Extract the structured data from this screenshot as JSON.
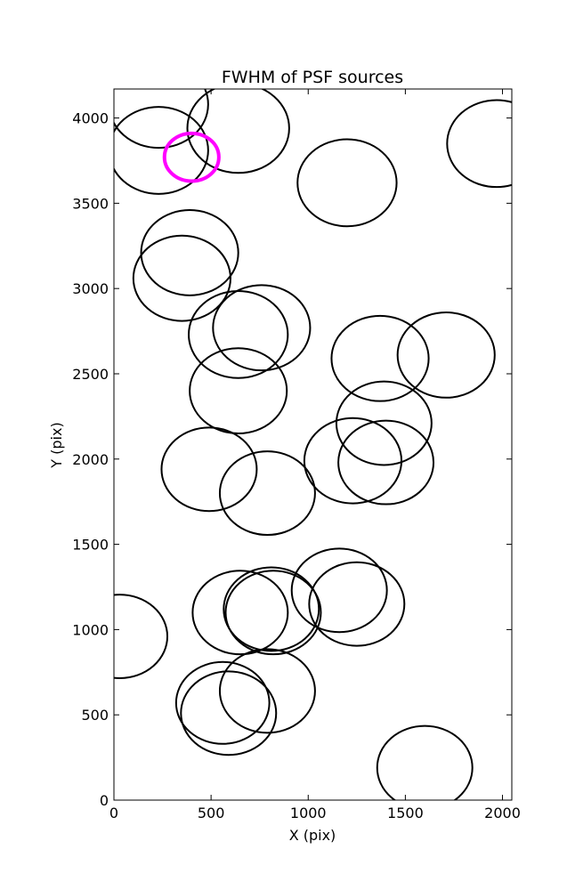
{
  "chart_data": {
    "type": "scatter",
    "title": "FWHM of PSF sources",
    "xlabel": "X (pix)",
    "ylabel": "Y (pix)",
    "xlim": [
      0,
      2048
    ],
    "ylim": [
      0,
      4170
    ],
    "xticks": [
      0,
      500,
      1000,
      1500,
      2000
    ],
    "yticks": [
      0,
      500,
      1000,
      1500,
      2000,
      2500,
      3000,
      3500,
      4000
    ],
    "grid": false,
    "marker": "open-circle",
    "source_color": "#000000",
    "highlight_color": "#ff00ff",
    "sources": [
      {
        "x": 230,
        "y": 4080,
        "r": 255
      },
      {
        "x": 230,
        "y": 3810,
        "r": 255
      },
      {
        "x": 640,
        "y": 3940,
        "r": 262
      },
      {
        "x": 1200,
        "y": 3620,
        "r": 255
      },
      {
        "x": 1970,
        "y": 3850,
        "r": 255
      },
      {
        "x": 390,
        "y": 3210,
        "r": 250
      },
      {
        "x": 350,
        "y": 3060,
        "r": 250
      },
      {
        "x": 640,
        "y": 2730,
        "r": 255
      },
      {
        "x": 760,
        "y": 2770,
        "r": 250
      },
      {
        "x": 640,
        "y": 2400,
        "r": 250
      },
      {
        "x": 1370,
        "y": 2590,
        "r": 250
      },
      {
        "x": 1710,
        "y": 2610,
        "r": 250
      },
      {
        "x": 1390,
        "y": 2210,
        "r": 245
      },
      {
        "x": 1230,
        "y": 1990,
        "r": 250
      },
      {
        "x": 1400,
        "y": 1980,
        "r": 245
      },
      {
        "x": 490,
        "y": 1940,
        "r": 245
      },
      {
        "x": 790,
        "y": 1800,
        "r": 245
      },
      {
        "x": 30,
        "y": 960,
        "r": 245
      },
      {
        "x": 650,
        "y": 1100,
        "r": 245
      },
      {
        "x": 810,
        "y": 1120,
        "r": 245
      },
      {
        "x": 820,
        "y": 1100,
        "r": 245
      },
      {
        "x": 1160,
        "y": 1230,
        "r": 245
      },
      {
        "x": 1250,
        "y": 1150,
        "r": 245
      },
      {
        "x": 560,
        "y": 570,
        "r": 240
      },
      {
        "x": 590,
        "y": 510,
        "r": 245
      },
      {
        "x": 790,
        "y": 640,
        "r": 245
      },
      {
        "x": 1600,
        "y": 190,
        "r": 245
      }
    ],
    "highlight": {
      "x": 400,
      "y": 3770,
      "r": 140
    }
  }
}
